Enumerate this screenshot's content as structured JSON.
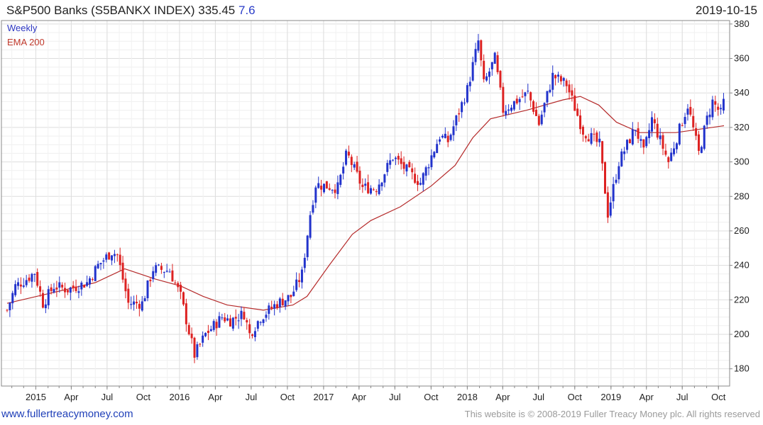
{
  "header": {
    "name": "S&P500 Banks",
    "ticker": "(S5BANKX INDEX)",
    "last": "335.45",
    "change": "7.6",
    "date": "2019-10-15"
  },
  "legend": {
    "frequency": "Weekly",
    "ema": "EMA 200"
  },
  "footer": {
    "url": "www.fullertreacymoney.com",
    "copyright": "This website is © 2008-2019 Fuller Treacy Money plc. All rights reserved"
  },
  "colors": {
    "up": "#2233cc",
    "down": "#dd2222",
    "ema": "#b52a2a",
    "grid": "#dddddd",
    "frame": "#888888"
  },
  "chart_data": {
    "type": "candlestick",
    "title": "S&P500 Banks (S5BANKX INDEX) 335.45 7.6",
    "frequency": "Weekly",
    "x_start": "2014-10-20",
    "x_end": "2019-10-15",
    "ylim": [
      170,
      382
    ],
    "y_ticks": [
      180,
      200,
      220,
      240,
      260,
      280,
      300,
      320,
      340,
      360,
      380
    ],
    "x_ticks": [
      {
        "label": "2015",
        "date": "2015-01-01"
      },
      {
        "label": "Apr",
        "date": "2015-04-01"
      },
      {
        "label": "Jul",
        "date": "2015-07-01"
      },
      {
        "label": "Oct",
        "date": "2015-10-01"
      },
      {
        "label": "2016",
        "date": "2016-01-01"
      },
      {
        "label": "Apr",
        "date": "2016-04-01"
      },
      {
        "label": "Jul",
        "date": "2016-07-01"
      },
      {
        "label": "Oct",
        "date": "2016-10-01"
      },
      {
        "label": "2017",
        "date": "2017-01-01"
      },
      {
        "label": "Apr",
        "date": "2017-04-01"
      },
      {
        "label": "Jul",
        "date": "2017-07-01"
      },
      {
        "label": "Oct",
        "date": "2017-10-01"
      },
      {
        "label": "2018",
        "date": "2018-01-01"
      },
      {
        "label": "Apr",
        "date": "2018-04-01"
      },
      {
        "label": "Jul",
        "date": "2018-07-01"
      },
      {
        "label": "Oct",
        "date": "2018-10-01"
      },
      {
        "label": "2019",
        "date": "2019-01-01"
      },
      {
        "label": "Apr",
        "date": "2019-04-01"
      },
      {
        "label": "Jul",
        "date": "2019-07-01"
      },
      {
        "label": "Oct",
        "date": "2019-10-01"
      }
    ],
    "series": [
      {
        "name": "Weekly",
        "kind": "close_path",
        "anchors": [
          [
            "2014-10-20",
            214
          ],
          [
            "2014-11-10",
            228
          ],
          [
            "2014-12-08",
            232
          ],
          [
            "2014-12-29",
            236
          ],
          [
            "2015-01-19",
            218
          ],
          [
            "2015-02-16",
            228
          ],
          [
            "2015-03-23",
            226
          ],
          [
            "2015-05-11",
            230
          ],
          [
            "2015-06-08",
            240
          ],
          [
            "2015-07-13",
            248
          ],
          [
            "2015-07-27",
            246
          ],
          [
            "2015-08-24",
            218
          ],
          [
            "2015-09-28",
            218
          ],
          [
            "2015-10-26",
            238
          ],
          [
            "2015-12-07",
            237
          ],
          [
            "2016-01-04",
            222
          ],
          [
            "2016-02-08",
            188
          ],
          [
            "2016-03-07",
            200
          ],
          [
            "2016-04-18",
            210
          ],
          [
            "2016-05-09",
            208
          ],
          [
            "2016-06-13",
            212
          ],
          [
            "2016-06-27",
            200
          ],
          [
            "2016-07-25",
            210
          ],
          [
            "2016-09-05",
            218
          ],
          [
            "2016-10-10",
            222
          ],
          [
            "2016-11-07",
            235
          ],
          [
            "2016-11-28",
            270
          ],
          [
            "2016-12-12",
            287
          ],
          [
            "2017-02-06",
            285
          ],
          [
            "2017-03-01",
            305
          ],
          [
            "2017-04-10",
            285
          ],
          [
            "2017-05-15",
            285
          ],
          [
            "2017-06-26",
            303
          ],
          [
            "2017-08-14",
            292
          ],
          [
            "2017-09-04",
            288
          ],
          [
            "2017-10-23",
            315
          ],
          [
            "2017-11-13",
            312
          ],
          [
            "2018-01-01",
            342
          ],
          [
            "2018-01-29",
            370
          ],
          [
            "2018-02-12",
            345
          ],
          [
            "2018-03-12",
            360
          ],
          [
            "2018-04-02",
            330
          ],
          [
            "2018-06-04",
            340
          ],
          [
            "2018-07-02",
            322
          ],
          [
            "2018-08-06",
            350
          ],
          [
            "2018-09-10",
            345
          ],
          [
            "2018-10-22",
            318
          ],
          [
            "2018-12-03",
            310
          ],
          [
            "2018-12-24",
            270
          ],
          [
            "2019-01-21",
            300
          ],
          [
            "2019-03-04",
            320
          ],
          [
            "2019-03-25",
            305
          ],
          [
            "2019-04-15",
            325
          ],
          [
            "2019-05-27",
            300
          ],
          [
            "2019-07-15",
            333
          ],
          [
            "2019-08-12",
            305
          ],
          [
            "2019-09-02",
            325
          ],
          [
            "2019-09-16",
            335
          ],
          [
            "2019-10-07",
            328
          ],
          [
            "2019-10-15",
            335.45
          ]
        ]
      },
      {
        "name": "EMA 200",
        "kind": "line",
        "points": [
          [
            "2014-10-20",
            218
          ],
          [
            "2015-03-01",
            225
          ],
          [
            "2015-06-01",
            230
          ],
          [
            "2015-08-15",
            238
          ],
          [
            "2015-11-01",
            232
          ],
          [
            "2016-01-04",
            228
          ],
          [
            "2016-03-01",
            222
          ],
          [
            "2016-05-01",
            217
          ],
          [
            "2016-08-01",
            214
          ],
          [
            "2016-10-15",
            217
          ],
          [
            "2016-11-20",
            222
          ],
          [
            "2017-01-15",
            240
          ],
          [
            "2017-03-15",
            258
          ],
          [
            "2017-05-01",
            266
          ],
          [
            "2017-07-15",
            274
          ],
          [
            "2017-10-01",
            286
          ],
          [
            "2017-12-01",
            298
          ],
          [
            "2018-01-15",
            314
          ],
          [
            "2018-03-01",
            325
          ],
          [
            "2018-06-01",
            330
          ],
          [
            "2018-09-01",
            336
          ],
          [
            "2018-10-15",
            338
          ],
          [
            "2018-12-01",
            333
          ],
          [
            "2019-01-15",
            323
          ],
          [
            "2019-03-15",
            317
          ],
          [
            "2019-06-15",
            317
          ],
          [
            "2019-08-15",
            319
          ],
          [
            "2019-10-15",
            321
          ]
        ]
      }
    ]
  }
}
